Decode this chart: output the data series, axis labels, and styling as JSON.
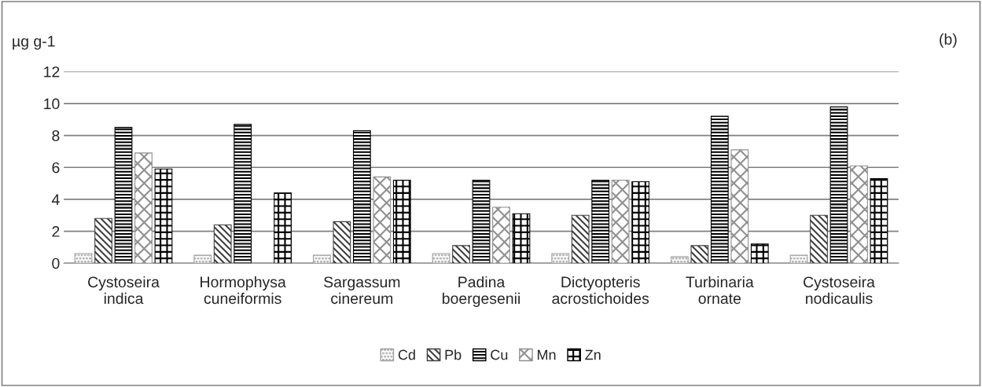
{
  "chart_data": {
    "type": "bar",
    "ylabel": "µg g-1",
    "annotations": [
      "(b)"
    ],
    "categories": [
      "Cystoseira\nindica",
      "Hormophysa\ncuneiformis",
      "Sargassum\ncinereum",
      "Padina\nboergesenii",
      "Dictyopteris\nacrostichoides",
      "Turbinaria\nornate",
      "Cystoseira\nnodicaulis"
    ],
    "series": [
      {
        "name": "Cd",
        "color": "#a0a0a0",
        "values": [
          0.6,
          0.5,
          0.5,
          0.6,
          0.6,
          0.4,
          0.5
        ]
      },
      {
        "name": "Pb",
        "color": "#404040",
        "values": [
          2.8,
          2.4,
          2.6,
          1.1,
          3.0,
          1.1,
          3.0
        ]
      },
      {
        "name": "Cu",
        "color": "#000000",
        "values": [
          8.5,
          8.7,
          8.3,
          5.2,
          5.2,
          9.2,
          9.8
        ]
      },
      {
        "name": "Mn",
        "color": "#909090",
        "values": [
          6.9,
          0,
          5.4,
          3.5,
          5.2,
          7.1,
          6.1
        ]
      },
      {
        "name": "Zn",
        "color": "#000000",
        "values": [
          5.9,
          4.4,
          5.2,
          3.1,
          5.1,
          1.2,
          5.3
        ]
      }
    ],
    "ylim": [
      0,
      12
    ],
    "yticks": [
      0,
      2,
      4,
      6,
      8,
      10,
      12
    ],
    "grid": "y",
    "legend": "bottom"
  }
}
